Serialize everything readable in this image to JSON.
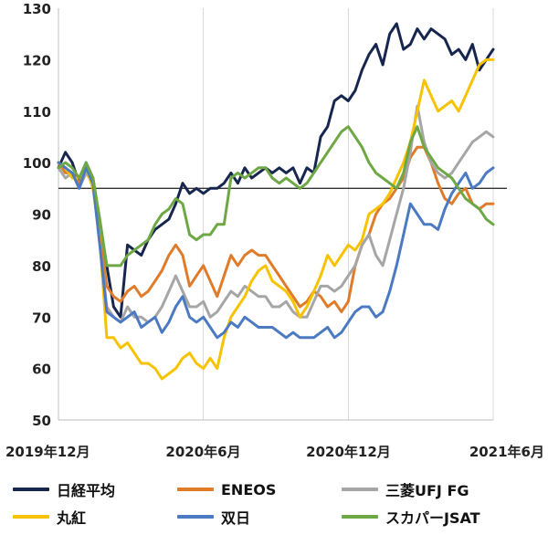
{
  "chart_data": {
    "type": "line",
    "title": "",
    "xlabel": "",
    "ylabel": "",
    "ylim": [
      50,
      130
    ],
    "yticks": [
      50,
      60,
      70,
      80,
      90,
      100,
      110,
      120,
      130
    ],
    "grid": "vertical",
    "legend_position": "bottom",
    "x_tick_labels": [
      "2019年12月",
      "2020年6月",
      "2020年12月",
      "2021年6月"
    ],
    "x_tick_positions": [
      0,
      0.333,
      0.667,
      1.0
    ],
    "reference_line": 95,
    "series": [
      {
        "name": "日経平均",
        "color": "#17264f",
        "values": [
          99,
          102,
          100,
          96,
          100,
          97,
          88,
          80,
          72,
          70,
          84,
          83,
          82,
          85,
          87,
          88,
          89,
          92,
          96,
          94,
          95,
          94,
          95,
          95,
          96,
          98,
          96,
          99,
          97,
          98,
          99,
          98,
          99,
          98,
          99,
          96,
          99,
          98,
          105,
          107,
          112,
          113,
          112,
          114,
          118,
          121,
          123,
          119,
          125,
          127,
          122,
          123,
          126,
          124,
          126,
          125,
          124,
          121,
          122,
          120,
          123,
          118,
          120,
          122
        ]
      },
      {
        "name": "ENEOS",
        "color": "#e07b2a",
        "values": [
          100,
          98,
          98,
          96,
          99,
          95,
          86,
          76,
          74,
          73,
          75,
          76,
          74,
          75,
          77,
          79,
          82,
          84,
          82,
          76,
          78,
          80,
          77,
          74,
          78,
          82,
          80,
          82,
          83,
          82,
          82,
          80,
          78,
          76,
          74,
          72,
          73,
          75,
          74,
          72,
          73,
          71,
          73,
          80,
          84,
          86,
          90,
          92,
          93,
          95,
          97,
          101,
          103,
          103,
          100,
          96,
          93,
          92,
          94,
          95,
          92,
          91,
          92,
          92
        ]
      },
      {
        "name": "三菱UFJ FG",
        "color": "#a6a6a6",
        "values": [
          99,
          97,
          98,
          95,
          98,
          96,
          84,
          72,
          70,
          69,
          72,
          70,
          70,
          69,
          70,
          72,
          75,
          78,
          75,
          72,
          72,
          73,
          70,
          71,
          73,
          75,
          74,
          76,
          75,
          74,
          74,
          72,
          72,
          73,
          71,
          70,
          70,
          73,
          76,
          76,
          75,
          76,
          78,
          80,
          84,
          86,
          82,
          80,
          85,
          90,
          95,
          102,
          111,
          104,
          100,
          98,
          97,
          98,
          100,
          102,
          104,
          105,
          106,
          105
        ]
      },
      {
        "name": "丸紅",
        "color": "#f7c300",
        "values": [
          100,
          99,
          97,
          97,
          99,
          95,
          85,
          66,
          66,
          64,
          65,
          63,
          61,
          61,
          60,
          58,
          59,
          60,
          62,
          63,
          61,
          60,
          62,
          60,
          66,
          70,
          72,
          74,
          77,
          79,
          80,
          77,
          76,
          75,
          73,
          70,
          72,
          75,
          78,
          82,
          80,
          82,
          84,
          83,
          85,
          90,
          91,
          92,
          94,
          97,
          100,
          104,
          110,
          116,
          113,
          110,
          111,
          112,
          110,
          113,
          116,
          119,
          120,
          120
        ]
      },
      {
        "name": "双日",
        "color": "#4b7ac2",
        "values": [
          100,
          99,
          98,
          95,
          99,
          96,
          84,
          71,
          70,
          69,
          70,
          71,
          68,
          69,
          70,
          67,
          69,
          72,
          74,
          70,
          69,
          70,
          68,
          66,
          67,
          69,
          68,
          70,
          69,
          68,
          68,
          68,
          67,
          66,
          67,
          66,
          66,
          66,
          67,
          68,
          66,
          67,
          69,
          71,
          72,
          72,
          70,
          71,
          75,
          80,
          86,
          92,
          90,
          88,
          88,
          87,
          91,
          94,
          96,
          98,
          95,
          96,
          98,
          99
        ]
      },
      {
        "name": "スカパーJSAT",
        "color": "#6ea844",
        "values": [
          99,
          100,
          99,
          97,
          100,
          97,
          89,
          80,
          80,
          80,
          82,
          83,
          84,
          85,
          88,
          90,
          91,
          93,
          92,
          86,
          85,
          86,
          86,
          88,
          88,
          97,
          98,
          97,
          98,
          99,
          99,
          97,
          96,
          97,
          96,
          95,
          96,
          98,
          100,
          102,
          104,
          106,
          107,
          105,
          103,
          100,
          98,
          97,
          96,
          95,
          98,
          104,
          107,
          103,
          101,
          99,
          98,
          97,
          95,
          93,
          92,
          91,
          89,
          88
        ]
      }
    ]
  }
}
